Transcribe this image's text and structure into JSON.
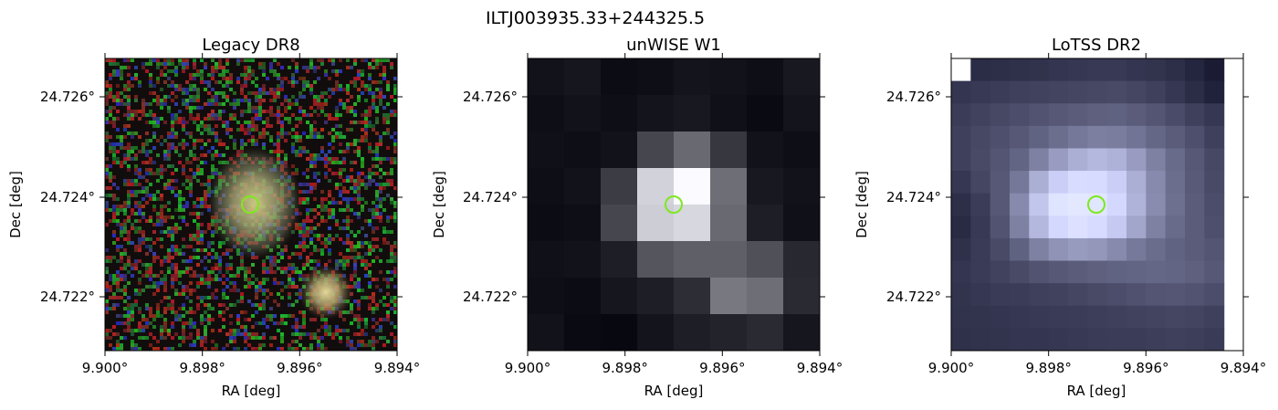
{
  "figure": {
    "title": "ILTJ003935.33+244325.5",
    "marker_color": "#7ee81f",
    "panels": [
      {
        "title": "Legacy DR8",
        "xlabel": "RA [deg]",
        "ylabel": "Dec [deg]",
        "xticks": [
          "9.900°",
          "9.898°",
          "9.896°",
          "9.894°"
        ],
        "yticks": [
          "24.726°",
          "24.724°",
          "24.722°"
        ],
        "image": "RGB optical cutout: noisy red/green/blue pixel background with a bright diffuse galaxy at centre and a smaller compact source to the lower right"
      },
      {
        "title": "unWISE W1",
        "xlabel": "RA [deg]",
        "ylabel": "Dec [deg]",
        "xticks": [
          "9.900°",
          "9.898°",
          "9.896°",
          "9.894°"
        ],
        "yticks": [
          "24.726°",
          "24.724°",
          "24.722°"
        ],
        "image": "greyscale infrared cutout with coarse pixels and a bright source at centre"
      },
      {
        "title": "LoTSS DR2",
        "xlabel": "RA [deg]",
        "ylabel": "Dec [deg]",
        "xticks": [
          "9.900°",
          "9.898°",
          "9.896°",
          "9.894°"
        ],
        "yticks": [
          "24.726°",
          "24.724°",
          "24.722°"
        ],
        "image": "bluish-grey radio cutout with a bright elongated source at centre"
      }
    ]
  }
}
